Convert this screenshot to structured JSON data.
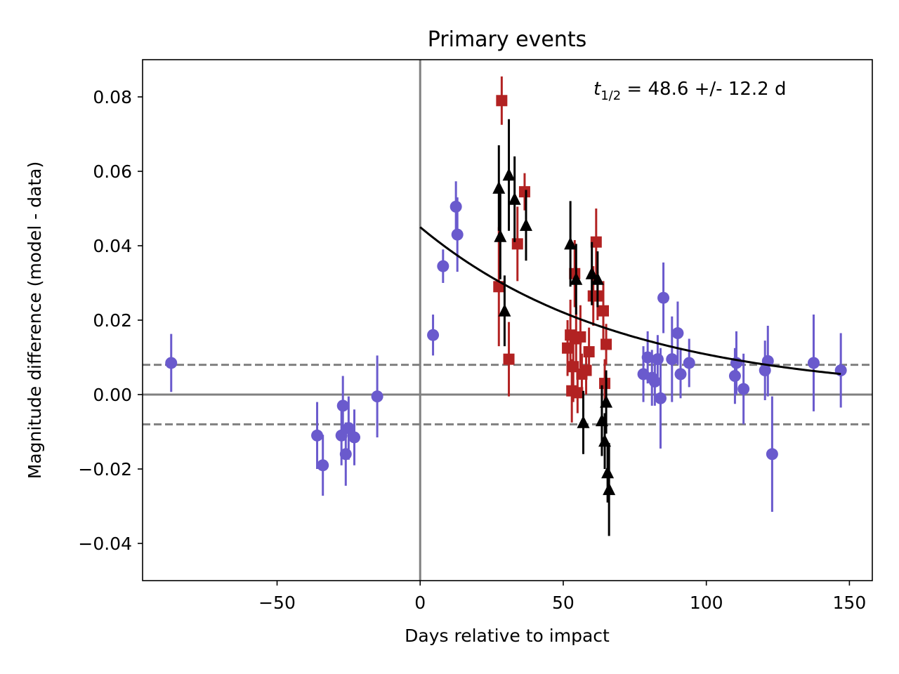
{
  "chart_data": {
    "type": "scatter",
    "title": "Primary events",
    "xlabel": "Days relative to impact",
    "ylabel": "Magnitude difference (model - data)",
    "xlim": [
      -97,
      158
    ],
    "ylim": [
      -0.05,
      0.09
    ],
    "xticks": [
      -50,
      0,
      50,
      100,
      150
    ],
    "xtick_labels": [
      "−50",
      "0",
      "50",
      "100",
      "150"
    ],
    "yticks": [
      -0.04,
      -0.02,
      0.0,
      0.02,
      0.04,
      0.06,
      0.08
    ],
    "ytick_labels": [
      "−0.04",
      "−0.02",
      "0.00",
      "0.02",
      "0.04",
      "0.06",
      "0.08"
    ],
    "grid": false,
    "annotation": {
      "symbol": "t",
      "subscript": "1/2",
      "text": " = 48.6 +/- 12.2 d"
    },
    "reference_lines": {
      "vertical_solid_x": 0,
      "horizontal_solid_y": 0.0,
      "horizontal_dashed_y": [
        0.008,
        -0.008
      ],
      "color": "#808080"
    },
    "fit_curve": {
      "model": "exponential decay",
      "amplitude": 0.045,
      "half_life_days": 48.6,
      "x_range": [
        0,
        147
      ],
      "color": "#000000"
    },
    "series": [
      {
        "name": "purple circles",
        "marker": "circle",
        "color": "#6a5acd",
        "points": [
          {
            "x": -87,
            "y": 0.0085,
            "err": 0.0078
          },
          {
            "x": -36,
            "y": -0.011,
            "err": 0.009
          },
          {
            "x": -34,
            "y": -0.019,
            "err": 0.0082
          },
          {
            "x": -27.5,
            "y": -0.011,
            "err": 0.008
          },
          {
            "x": -27,
            "y": -0.003,
            "err": 0.008
          },
          {
            "x": -26,
            "y": -0.016,
            "err": 0.0085
          },
          {
            "x": -25,
            "y": -0.009,
            "err": 0.0085
          },
          {
            "x": -23,
            "y": -0.0115,
            "err": 0.0075
          },
          {
            "x": -15,
            "y": -0.0005,
            "err": 0.011
          },
          {
            "x": 4.5,
            "y": 0.016,
            "err": 0.0055
          },
          {
            "x": 8,
            "y": 0.0345,
            "err": 0.0045
          },
          {
            "x": 12.5,
            "y": 0.0505,
            "err": 0.0068
          },
          {
            "x": 13,
            "y": 0.043,
            "err": 0.01
          },
          {
            "x": 78,
            "y": 0.0055,
            "err": 0.0075
          },
          {
            "x": 79.5,
            "y": 0.01,
            "err": 0.007
          },
          {
            "x": 81,
            "y": 0.0045,
            "err": 0.0075
          },
          {
            "x": 82,
            "y": 0.0035,
            "err": 0.0065
          },
          {
            "x": 83,
            "y": 0.0095,
            "err": 0.0065
          },
          {
            "x": 84,
            "y": -0.001,
            "err": 0.0135
          },
          {
            "x": 85,
            "y": 0.026,
            "err": 0.0095
          },
          {
            "x": 88,
            "y": 0.0095,
            "err": 0.0115
          },
          {
            "x": 90,
            "y": 0.0165,
            "err": 0.0085
          },
          {
            "x": 91,
            "y": 0.0055,
            "err": 0.0065
          },
          {
            "x": 94,
            "y": 0.0085,
            "err": 0.0065
          },
          {
            "x": 110,
            "y": 0.005,
            "err": 0.0075
          },
          {
            "x": 110.5,
            "y": 0.0085,
            "err": 0.0085
          },
          {
            "x": 113,
            "y": 0.0015,
            "err": 0.0095
          },
          {
            "x": 120.5,
            "y": 0.0065,
            "err": 0.008
          },
          {
            "x": 121.5,
            "y": 0.009,
            "err": 0.0095
          },
          {
            "x": 123,
            "y": -0.016,
            "err": 0.0155
          },
          {
            "x": 137.5,
            "y": 0.0085,
            "err": 0.013
          },
          {
            "x": 147,
            "y": 0.0065,
            "err": 0.01
          }
        ]
      },
      {
        "name": "red squares",
        "marker": "square",
        "color": "#b22222",
        "points": [
          {
            "x": 28.5,
            "y": 0.079,
            "err": 0.0065
          },
          {
            "x": 27.5,
            "y": 0.029,
            "err": 0.016
          },
          {
            "x": 31,
            "y": 0.0095,
            "err": 0.01
          },
          {
            "x": 34,
            "y": 0.0405,
            "err": 0.01
          },
          {
            "x": 36.5,
            "y": 0.0545,
            "err": 0.005
          },
          {
            "x": 51.5,
            "y": 0.0125,
            "err": 0.0075
          },
          {
            "x": 52.5,
            "y": 0.016,
            "err": 0.0095
          },
          {
            "x": 53,
            "y": 0.001,
            "err": 0.0085
          },
          {
            "x": 53.5,
            "y": 0.0075,
            "err": 0.0095
          },
          {
            "x": 54,
            "y": 0.0325,
            "err": 0.009
          },
          {
            "x": 54.5,
            "y": 0.015,
            "err": 0.0085
          },
          {
            "x": 55,
            "y": 0.0005,
            "err": 0.0055
          },
          {
            "x": 56,
            "y": 0.0155,
            "err": 0.0085
          },
          {
            "x": 56.5,
            "y": 0.0055,
            "err": 0.0055
          },
          {
            "x": 58,
            "y": 0.0065,
            "err": 0.0065
          },
          {
            "x": 59,
            "y": 0.0115,
            "err": 0.0065
          },
          {
            "x": 60.5,
            "y": 0.0265,
            "err": 0.008
          },
          {
            "x": 61.5,
            "y": 0.041,
            "err": 0.009
          },
          {
            "x": 62,
            "y": 0.0265,
            "err": 0.0065
          },
          {
            "x": 64,
            "y": 0.0225,
            "err": 0.008
          },
          {
            "x": 64.5,
            "y": 0.003,
            "err": 0.0065
          },
          {
            "x": 65,
            "y": 0.0135,
            "err": 0.0055
          }
        ]
      },
      {
        "name": "black triangles",
        "marker": "triangle",
        "color": "#000000",
        "points": [
          {
            "x": 27.5,
            "y": 0.0555,
            "err": 0.0115
          },
          {
            "x": 28,
            "y": 0.0425,
            "err": 0.0115
          },
          {
            "x": 29.5,
            "y": 0.0225,
            "err": 0.0095
          },
          {
            "x": 31,
            "y": 0.059,
            "err": 0.015
          },
          {
            "x": 33,
            "y": 0.0525,
            "err": 0.0115
          },
          {
            "x": 37,
            "y": 0.0455,
            "err": 0.0095
          },
          {
            "x": 52.5,
            "y": 0.0405,
            "err": 0.0115
          },
          {
            "x": 54.5,
            "y": 0.031,
            "err": 0.0095
          },
          {
            "x": 57,
            "y": -0.0075,
            "err": 0.0085
          },
          {
            "x": 60,
            "y": 0.0325,
            "err": 0.0085
          },
          {
            "x": 62,
            "y": 0.031,
            "err": 0.0075
          },
          {
            "x": 63.5,
            "y": -0.007,
            "err": 0.0095
          },
          {
            "x": 64.5,
            "y": -0.0125,
            "err": 0.0075
          },
          {
            "x": 65,
            "y": -0.002,
            "err": 0.0085
          },
          {
            "x": 65.5,
            "y": -0.021,
            "err": 0.008
          },
          {
            "x": 66,
            "y": -0.0255,
            "err": 0.0125
          }
        ]
      }
    ]
  }
}
